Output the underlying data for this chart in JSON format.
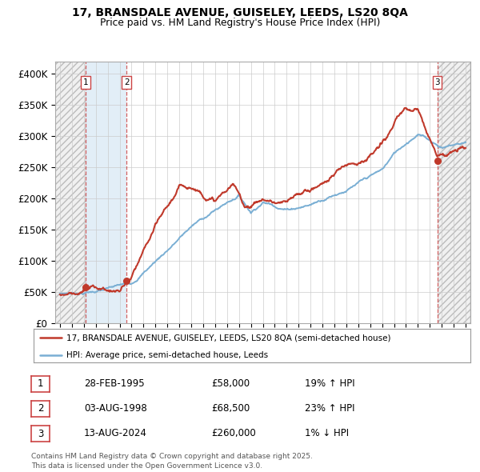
{
  "title_line1": "17, BRANSDALE AVENUE, GUISELEY, LEEDS, LS20 8QA",
  "title_line2": "Price paid vs. HM Land Registry's House Price Index (HPI)",
  "ylim": [
    0,
    420000
  ],
  "yticks": [
    0,
    50000,
    100000,
    150000,
    200000,
    250000,
    300000,
    350000,
    400000
  ],
  "ytick_labels": [
    "£0",
    "£50K",
    "£100K",
    "£150K",
    "£200K",
    "£250K",
    "£300K",
    "£350K",
    "£400K"
  ],
  "xlim_start": 1992.6,
  "xlim_end": 2027.4,
  "sale_dates": [
    1995.16,
    1998.59,
    2024.62
  ],
  "sale_prices": [
    58000,
    68500,
    260000
  ],
  "sale_labels": [
    "1",
    "2",
    "3"
  ],
  "hpi_color": "#7aafd4",
  "price_color": "#c0392b",
  "shade_color": "#d6e8f5",
  "legend_entries": [
    "17, BRANSDALE AVENUE, GUISELEY, LEEDS, LS20 8QA (semi-detached house)",
    "HPI: Average price, semi-detached house, Leeds"
  ],
  "table_rows": [
    {
      "label": "1",
      "date": "28-FEB-1995",
      "price": "£58,000",
      "hpi": "19% ↑ HPI"
    },
    {
      "label": "2",
      "date": "03-AUG-1998",
      "price": "£68,500",
      "hpi": "23% ↑ HPI"
    },
    {
      "label": "3",
      "date": "13-AUG-2024",
      "price": "£260,000",
      "hpi": "1% ↓ HPI"
    }
  ],
  "footer": "Contains HM Land Registry data © Crown copyright and database right 2025.\nThis data is licensed under the Open Government Licence v3.0."
}
